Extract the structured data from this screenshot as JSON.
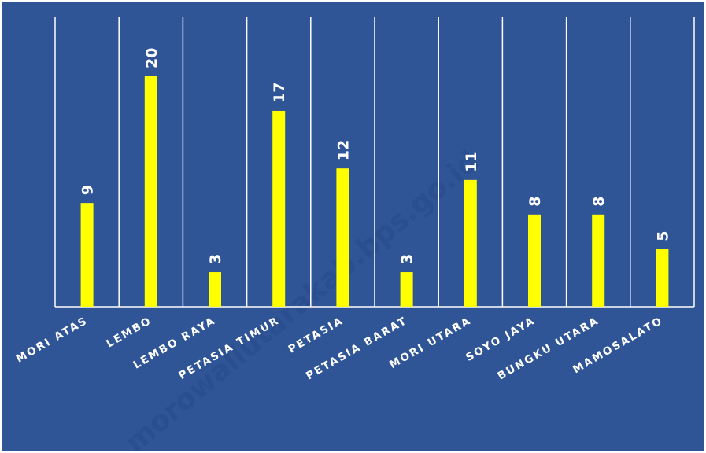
{
  "watermark": "morowaliutarakab.bps.go.id",
  "colors": {
    "background": "#2f5597",
    "bar": "#ffff00",
    "grid": "#ffffff",
    "text": "#ffffff"
  },
  "chart_data": {
    "type": "bar",
    "categories": [
      "MORI ATAS",
      "LEMBO",
      "LEMBO RAYA",
      "PETASIA TIMUR",
      "PETASIA",
      "PETASIA BARAT",
      "MORI UTARA",
      "SOYO JAYA",
      "BUNGKU UTARA",
      "MAMOSALATO"
    ],
    "values": [
      9,
      20,
      3,
      17,
      12,
      3,
      11,
      8,
      8,
      5
    ],
    "title": "",
    "xlabel": "",
    "ylabel": "",
    "ylim": [
      0,
      24
    ],
    "data_labels": true,
    "grid": "vertical category separators",
    "legend": "none"
  }
}
